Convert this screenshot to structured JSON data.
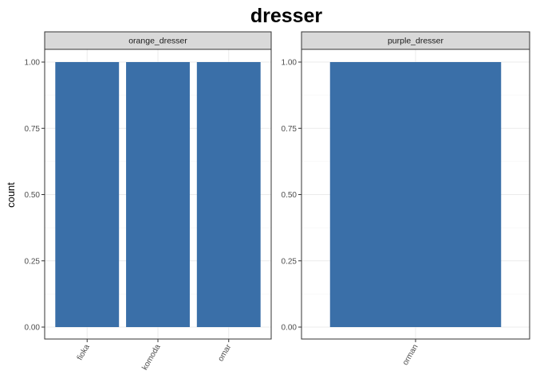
{
  "chart_data": {
    "type": "bar",
    "title": "dresser",
    "ylabel": "count",
    "xlabel": "",
    "ylim": [
      0,
      1.05
    ],
    "yticks": [
      0.0,
      0.25,
      0.5,
      0.75,
      1.0
    ],
    "ytick_labels": [
      "0.00",
      "0.25",
      "0.50",
      "0.75",
      "1.00"
    ],
    "bar_color": "#3a6fa8",
    "facets": [
      {
        "name": "orange_dresser",
        "categories": [
          "fioka",
          "komoda",
          "omar"
        ],
        "values": [
          1,
          1,
          1
        ]
      },
      {
        "name": "purple_dresser",
        "categories": [
          "orman"
        ],
        "values": [
          1
        ]
      }
    ]
  }
}
